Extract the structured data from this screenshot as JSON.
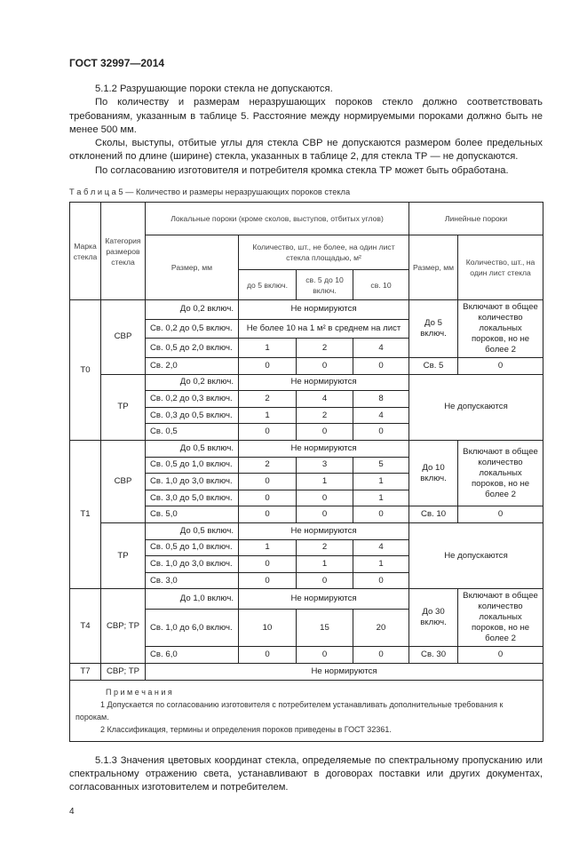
{
  "header": "ГОСТ 32997—2014",
  "intro": [
    "5.1.2 Разрушающие пороки стекла не допускаются.",
    "По количеству и размерам неразрушающих пороков стекло должно соответствовать требованиям, указанным в таблице 5. Расстояние между нормируемыми пороками должно быть не менее 500 мм.",
    "Сколы, выступы, отбитые углы для стекла СВР не допускаются размером более предельных отклонений по длине (ширине) стекла, указанных в таблице 2, для стекла ТР — не допускаются.",
    "По согласованию изготовителя и потребителя кромка стекла ТР может быть обработана."
  ],
  "table": {
    "caption": "Т а б л и ц а  5 — Количество и размеры неразрушающих пороков стекла",
    "headers": {
      "mark": "Марка стекла",
      "category": "Категория размеров стекла",
      "local": "Локальные пороки (кроме сколов, выступов, отбитых углов)",
      "size": "Размер, мм",
      "count": "Количество, шт., не более, на один лист стекла площадью, м²",
      "c1": "до 5 включ.",
      "c2": "св. 5 до 10 включ.",
      "c3": "св. 10",
      "linear": "Линейные пороки",
      "lsize": "Размер, мм",
      "lcount": "Количество, шт., на один лист стекла"
    },
    "rows": [
      [
        "Т0",
        "СВР",
        "До 0,2 включ.",
        "Не нормируются",
        "До 5 включ.",
        "Включают в общее количество локальных пороков, но не более 2"
      ],
      [
        "Св. 0,2 до 0,5 включ.",
        "Не более 10 на 1 м² в среднем на лист"
      ],
      [
        "Св. 0,5 до 2,0 включ.",
        "1",
        "2",
        "4"
      ],
      [
        "Св. 2,0",
        "0",
        "0",
        "0",
        "Св. 5",
        "0"
      ],
      [
        "ТР",
        "До 0,2 включ.",
        "Не нормируются",
        "Не допускаются"
      ],
      [
        "Св. 0,2 до 0,3 включ.",
        "2",
        "4",
        "8"
      ],
      [
        "Св. 0,3 до 0,5 включ.",
        "1",
        "2",
        "4"
      ],
      [
        "Св. 0,5",
        "0",
        "0",
        "0"
      ],
      [
        "Т1",
        "СВР",
        "До 0,5 включ.",
        "Не нормируются",
        "До 10 включ.",
        "Включают в общее количество локальных пороков, но не более 2"
      ],
      [
        "Св. 0,5 до 1,0 включ.",
        "2",
        "3",
        "5"
      ],
      [
        "Св. 1,0 до 3,0 включ.",
        "0",
        "1",
        "1"
      ],
      [
        "Св. 3,0 до 5,0 включ.",
        "0",
        "0",
        "1"
      ],
      [
        "Св. 5,0",
        "0",
        "0",
        "0",
        "Св. 10",
        "0"
      ],
      [
        "ТР",
        "До 0,5 включ.",
        "Не нормируются",
        "Не допускаются"
      ],
      [
        "Св. 0,5 до 1,0 включ.",
        "1",
        "2",
        "4"
      ],
      [
        "Св. 1,0 до 3,0 включ.",
        "0",
        "1",
        "1"
      ],
      [
        "Св. 3,0",
        "0",
        "0",
        "0"
      ],
      [
        "Т4",
        "СВР; ТР",
        "До 1,0 включ.",
        "Не нормируются",
        "До 30 включ.",
        "Включают в общее количество локальных пороков, но не более 2"
      ],
      [
        "Св. 1,0 до 6,0 включ.",
        "10",
        "15",
        "20"
      ],
      [
        "Св. 6,0",
        "0",
        "0",
        "0",
        "Св. 30",
        "0"
      ],
      [
        "Т7",
        "СВР; ТР",
        "Не нормируются"
      ]
    ],
    "notes": {
      "title": "П р и м е ч а н и я",
      "items": [
        "1 Допускается по согласованию изготовителя с потребителем устанавливать дополнительные требования к порокам.",
        "2 Классификация, термины и определения пороков приведены в ГОСТ 32361."
      ]
    }
  },
  "after": "5.1.3 Значения цветовых координат стекла, определяемые по спектральному пропусканию или спектральному отражению света, устанавливают в договорах поставки или других документах, согласованных изготовителем и потребителем.",
  "page_number": "4"
}
